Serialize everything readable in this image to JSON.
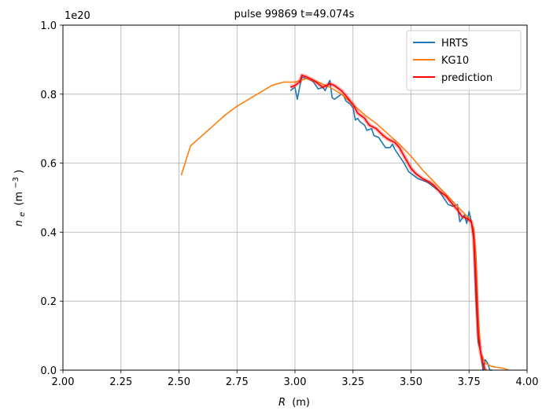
{
  "chart_data": {
    "type": "line",
    "title": "pulse 99869 t=49.074s",
    "xlabel_symbol": "R",
    "xlabel_unit": "(m)",
    "ylabel_symbol": "n",
    "ylabel_sub": "e",
    "ylabel_unit": "(m",
    "ylabel_exp": "−3",
    "ylabel_close": ")",
    "y_offset_label": "1e20",
    "xlim": [
      2.0,
      4.0
    ],
    "ylim": [
      0.0,
      1.0
    ],
    "y_scale_note": "values in units of 1e20",
    "x_ticks": [
      "2.00",
      "2.25",
      "2.50",
      "2.75",
      "3.00",
      "3.25",
      "3.50",
      "3.75",
      "4.00"
    ],
    "y_ticks": [
      "0.0",
      "0.2",
      "0.4",
      "0.6",
      "0.8",
      "1.0"
    ],
    "grid": true,
    "legend_position": "top-right",
    "series": [
      {
        "name": "HRTS",
        "color": "#1f77b4",
        "x": [
          2.98,
          3.0,
          3.01,
          3.02,
          3.03,
          3.05,
          3.07,
          3.08,
          3.1,
          3.12,
          3.13,
          3.15,
          3.16,
          3.17,
          3.18,
          3.2,
          3.21,
          3.22,
          3.24,
          3.25,
          3.26,
          3.27,
          3.28,
          3.3,
          3.31,
          3.33,
          3.34,
          3.36,
          3.38,
          3.39,
          3.41,
          3.42,
          3.43,
          3.45,
          3.47,
          3.49,
          3.5,
          3.52,
          3.53,
          3.55,
          3.57,
          3.58,
          3.6,
          3.62,
          3.64,
          3.66,
          3.68,
          3.7,
          3.71,
          3.73,
          3.74,
          3.75,
          3.76,
          3.77,
          3.78,
          3.79,
          3.8,
          3.81,
          3.82,
          3.83,
          3.84,
          3.85
        ],
        "y": [
          0.81,
          0.82,
          0.785,
          0.82,
          0.85,
          0.845,
          0.84,
          0.835,
          0.815,
          0.82,
          0.81,
          0.84,
          0.79,
          0.785,
          0.79,
          0.8,
          0.795,
          0.78,
          0.77,
          0.76,
          0.725,
          0.73,
          0.72,
          0.71,
          0.695,
          0.7,
          0.68,
          0.675,
          0.655,
          0.645,
          0.645,
          0.655,
          0.64,
          0.62,
          0.6,
          0.575,
          0.57,
          0.56,
          0.555,
          0.55,
          0.545,
          0.54,
          0.53,
          0.52,
          0.5,
          0.48,
          0.475,
          0.48,
          0.43,
          0.45,
          0.425,
          0.46,
          0.43,
          0.38,
          0.2,
          0.08,
          0.055,
          0.0,
          0.03,
          0.02,
          0.0,
          0.0
        ]
      },
      {
        "name": "KG10",
        "color": "#ff7f0e",
        "x": [
          2.51,
          2.55,
          2.6,
          2.65,
          2.7,
          2.75,
          2.8,
          2.85,
          2.9,
          2.95,
          3.0,
          3.05,
          3.1,
          3.15,
          3.2,
          3.25,
          3.3,
          3.35,
          3.4,
          3.45,
          3.5,
          3.55,
          3.6,
          3.65,
          3.7,
          3.75,
          3.77,
          3.78,
          3.79,
          3.8,
          3.82,
          3.85,
          3.9,
          3.92
        ],
        "y": [
          0.565,
          0.65,
          0.68,
          0.71,
          0.74,
          0.765,
          0.785,
          0.805,
          0.825,
          0.835,
          0.835,
          0.845,
          0.835,
          0.82,
          0.8,
          0.77,
          0.74,
          0.715,
          0.685,
          0.655,
          0.62,
          0.58,
          0.545,
          0.51,
          0.475,
          0.44,
          0.41,
          0.33,
          0.15,
          0.05,
          0.02,
          0.01,
          0.005,
          0.0
        ]
      },
      {
        "name": "prediction",
        "color": "#ff0000",
        "x": [
          2.98,
          3.0,
          3.02,
          3.03,
          3.05,
          3.08,
          3.1,
          3.12,
          3.15,
          3.17,
          3.2,
          3.22,
          3.25,
          3.27,
          3.3,
          3.32,
          3.35,
          3.38,
          3.4,
          3.43,
          3.45,
          3.47,
          3.5,
          3.52,
          3.55,
          3.58,
          3.6,
          3.62,
          3.65,
          3.68,
          3.7,
          3.72,
          3.74,
          3.76,
          3.77,
          3.78,
          3.79,
          3.8,
          3.81,
          3.82
        ],
        "y": [
          0.82,
          0.825,
          0.835,
          0.855,
          0.85,
          0.84,
          0.83,
          0.82,
          0.83,
          0.825,
          0.81,
          0.795,
          0.77,
          0.745,
          0.73,
          0.71,
          0.7,
          0.68,
          0.67,
          0.66,
          0.645,
          0.62,
          0.585,
          0.57,
          0.555,
          0.545,
          0.535,
          0.52,
          0.505,
          0.48,
          0.465,
          0.445,
          0.44,
          0.43,
          0.39,
          0.25,
          0.1,
          0.05,
          0.02,
          0.0
        ]
      }
    ]
  }
}
